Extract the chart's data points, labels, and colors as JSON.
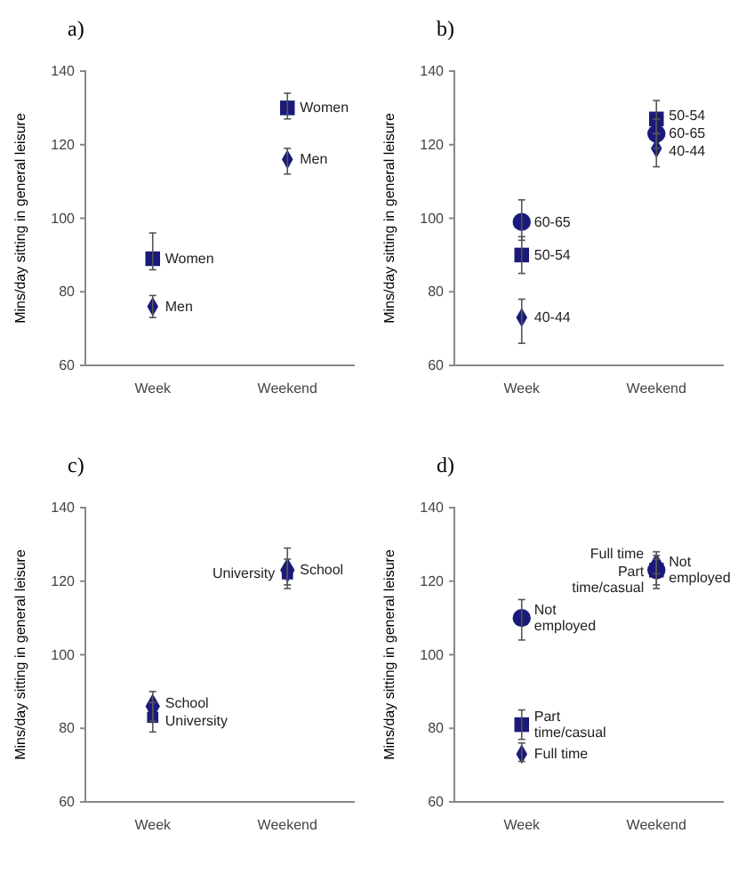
{
  "chart_data": [
    {
      "type": "scatter",
      "title": "a)",
      "ylabel": "Mins/day sitting in general leisure",
      "categories": [
        "Week",
        "Weekend"
      ],
      "ylim": [
        60,
        140
      ],
      "yticks": [
        60,
        80,
        100,
        120,
        140
      ],
      "grid": false,
      "series": [
        {
          "name": "Women",
          "color": "#1a1a7a",
          "marker": "square",
          "values": [
            89,
            130
          ],
          "errors": [
            [
              86,
              96
            ],
            [
              127,
              134
            ]
          ]
        },
        {
          "name": "Men",
          "color": "#1a1a7a",
          "marker": "diamond",
          "values": [
            76,
            116
          ],
          "errors": [
            [
              73,
              79
            ],
            [
              112,
              119
            ]
          ]
        }
      ]
    },
    {
      "type": "scatter",
      "title": "b)",
      "ylabel": "Mins/day sitting in general leisure",
      "categories": [
        "Week",
        "Weekend"
      ],
      "ylim": [
        60,
        140
      ],
      "yticks": [
        60,
        80,
        100,
        120,
        140
      ],
      "grid": false,
      "series": [
        {
          "name": "60-65",
          "color": "#1a1a7a",
          "marker": "circle",
          "values": [
            99,
            123
          ],
          "errors": [
            [
              94,
              105
            ],
            [
              119,
              127
            ]
          ]
        },
        {
          "name": "50-54",
          "color": "#1a1a7a",
          "marker": "square",
          "values": [
            90,
            127
          ],
          "errors": [
            [
              85,
              95
            ],
            [
              123,
              132
            ]
          ]
        },
        {
          "name": "40-44",
          "color": "#1a1a7a",
          "marker": "diamond",
          "values": [
            73,
            119
          ],
          "errors": [
            [
              66,
              78
            ],
            [
              114,
              123
            ]
          ]
        }
      ]
    },
    {
      "type": "scatter",
      "title": "c)",
      "ylabel": "Mins/day sitting in general leisure",
      "categories": [
        "Week",
        "Weekend"
      ],
      "ylim": [
        60,
        140
      ],
      "yticks": [
        60,
        80,
        100,
        120,
        140
      ],
      "grid": false,
      "series": [
        {
          "name": "School",
          "color": "#1a1a7a",
          "marker": "diamond",
          "values": [
            86,
            123
          ],
          "errors": [
            [
              82,
              90
            ],
            [
              119,
              129
            ]
          ]
        },
        {
          "name": "University",
          "color": "#1a1a7a",
          "marker": "square",
          "values": [
            83,
            122
          ],
          "errors": [
            [
              79,
              87
            ],
            [
              118,
              126
            ]
          ]
        }
      ]
    },
    {
      "type": "scatter",
      "title": "d)",
      "ylabel": "Mins/day sitting in general leisure",
      "categories": [
        "Week",
        "Weekend"
      ],
      "ylim": [
        60,
        140
      ],
      "yticks": [
        60,
        80,
        100,
        120,
        140
      ],
      "grid": false,
      "series": [
        {
          "name": "Not employed",
          "color": "#1a1a7a",
          "marker": "circle",
          "values": [
            110,
            123
          ],
          "errors": [
            [
              104,
              115
            ],
            [
              118,
              127
            ]
          ]
        },
        {
          "name": "Part time/casual",
          "color": "#1a1a7a",
          "marker": "square",
          "values": [
            81,
            123
          ],
          "errors": [
            [
              77,
              85
            ],
            [
              119,
              126
            ]
          ]
        },
        {
          "name": "Full time",
          "color": "#1a1a7a",
          "marker": "diamond",
          "values": [
            73,
            125
          ],
          "errors": [
            [
              71,
              76
            ],
            [
              122,
              128
            ]
          ]
        }
      ]
    }
  ]
}
